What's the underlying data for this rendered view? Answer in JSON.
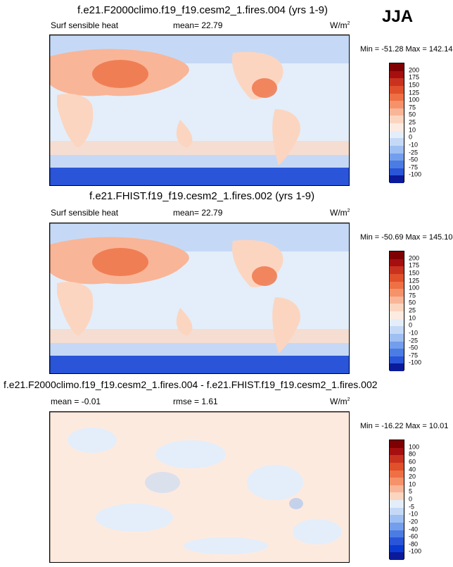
{
  "season": "JJA",
  "units": "W/m",
  "units_sup": "2",
  "panels": [
    {
      "title": "f.e21.F2000climo.f19_f19.cesm2_1.fires.004 (yrs 1-9)",
      "variable": "Surf sensible heat",
      "mean": "mean=  22.79",
      "minmax": "Min = -51.28 Max = 142.14"
    },
    {
      "title": "f.e21.FHIST.f19_f19.cesm2_1.fires.002 (yrs 1-9)",
      "variable": "Surf sensible heat",
      "mean": "mean=  22.79",
      "minmax": "Min = -50.69 Max = 145.10"
    },
    {
      "title": "f.e21.F2000climo.f19_f19.cesm2_1.fires.004 - f.e21.FHIST.f19_f19.cesm2_1.fires.002",
      "mean": "mean =  -0.01",
      "rmse": "rmse =   1.61",
      "minmax": "Min = -16.22 Max =  10.01"
    }
  ],
  "colorbars": {
    "abs": {
      "labels": [
        "200",
        "175",
        "150",
        "125",
        "100",
        "75",
        "50",
        "25",
        "10",
        "0",
        "-10",
        "-25",
        "-50",
        "-75",
        "-100"
      ],
      "colors": [
        "#7f0000",
        "#a50f0f",
        "#c8321e",
        "#e0502a",
        "#ee7044",
        "#f5926a",
        "#f9b597",
        "#fcd5c0",
        "#fdebe1",
        "#e3eefa",
        "#c5d9f6",
        "#9ebff2",
        "#739eec",
        "#4a7ce4",
        "#2a55d8",
        "#0a1a9a"
      ]
    },
    "diff": {
      "labels": [
        "100",
        "80",
        "60",
        "40",
        "20",
        "10",
        "5",
        "0",
        "-5",
        "-10",
        "-20",
        "-40",
        "-60",
        "-80",
        "-100"
      ],
      "colors": [
        "#7f0000",
        "#a50f0f",
        "#c8321e",
        "#e0502a",
        "#ee7044",
        "#f5926a",
        "#f9b597",
        "#fcd5c0",
        "#e3eefa",
        "#c5d9f6",
        "#9ebff2",
        "#739eec",
        "#4a7ce4",
        "#2a55d8",
        "#0a3ad0",
        "#0a1a9a"
      ]
    }
  },
  "chart_data": [
    {
      "type": "heatmap",
      "title": "f.e21.F2000climo.f19_f19.cesm2_1.fires.004 (yrs 1-9)",
      "variable": "Surf sensible heat",
      "mean": 22.79,
      "min": -51.28,
      "max": 142.14,
      "units": "W/m2",
      "season": "JJA",
      "colorbar_levels": [
        -100,
        -75,
        -50,
        -25,
        -10,
        0,
        10,
        25,
        50,
        75,
        100,
        125,
        150,
        175,
        200
      ]
    },
    {
      "type": "heatmap",
      "title": "f.e21.FHIST.f19_f19.cesm2_1.fires.002 (yrs 1-9)",
      "variable": "Surf sensible heat",
      "mean": 22.79,
      "min": -50.69,
      "max": 145.1,
      "units": "W/m2",
      "season": "JJA",
      "colorbar_levels": [
        -100,
        -75,
        -50,
        -25,
        -10,
        0,
        10,
        25,
        50,
        75,
        100,
        125,
        150,
        175,
        200
      ]
    },
    {
      "type": "heatmap",
      "title": "f.e21.F2000climo.f19_f19.cesm2_1.fires.004 - f.e21.FHIST.f19_f19.cesm2_1.fires.002",
      "mean": -0.01,
      "rmse": 1.61,
      "min": -16.22,
      "max": 10.01,
      "units": "W/m2",
      "colorbar_levels": [
        -100,
        -80,
        -60,
        -40,
        -20,
        -10,
        -5,
        0,
        5,
        10,
        20,
        40,
        60,
        80,
        100
      ]
    }
  ]
}
